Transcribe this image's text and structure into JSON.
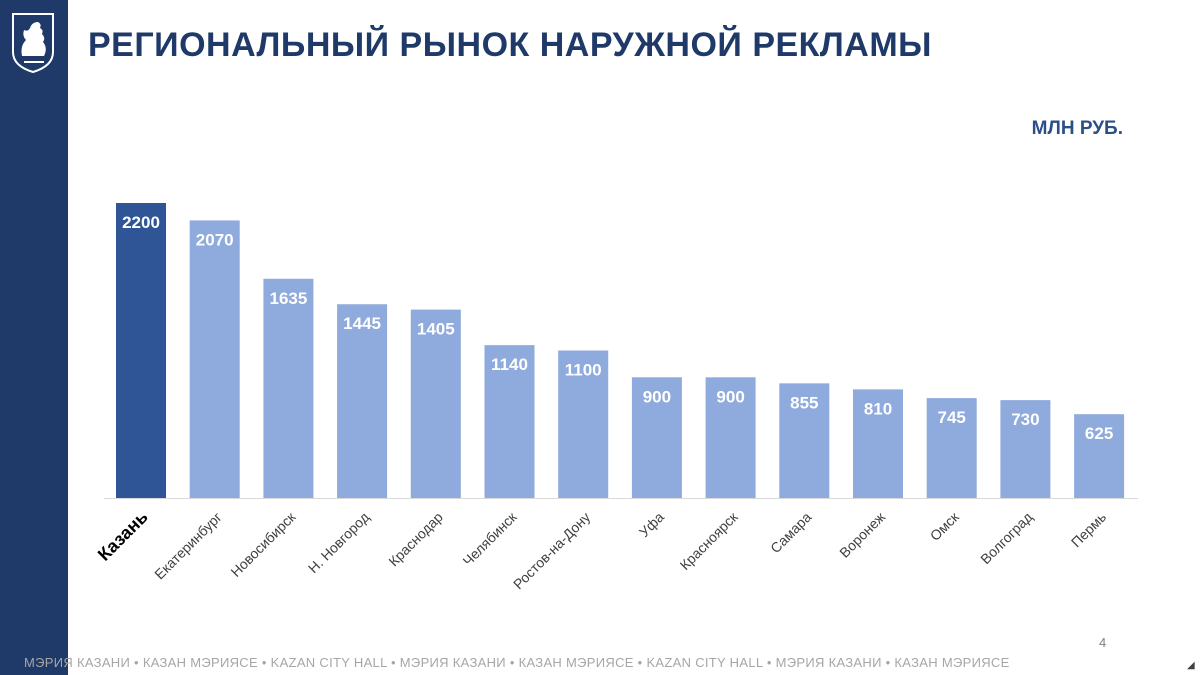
{
  "header": {
    "title": "РЕГИОНАЛЬНЫЙ РЫНОК НАРУЖНОЙ РЕКЛАМЫ",
    "unit_label": "МЛН РУБ."
  },
  "branding": {
    "logo_icon": "kazan-coat-of-arms-icon",
    "sidebar_color": "#1f3a68"
  },
  "footer": {
    "text": "МЭРИЯ КАЗАНИ  •  КАЗАН МЭРИЯСЕ  •  KAZAN CITY HALL  •  МЭРИЯ КАЗАНИ  •  КАЗАН МЭРИЯСЕ  •  KAZAN CITY HALL  •  МЭРИЯ КАЗАНИ  •  КАЗАН МЭРИЯСЕ",
    "page_number": "4"
  },
  "colors": {
    "highlight_bar": "#2f5597",
    "bar": "#8faadc",
    "title": "#1f3a68"
  },
  "chart_data": {
    "type": "bar",
    "title": "РЕГИОНАЛЬНЫЙ РЫНОК НАРУЖНОЙ РЕКЛАМЫ",
    "unit": "МЛН РУБ.",
    "categories": [
      "Казань",
      "Екатеринбург",
      "Новосибирск",
      "Н. Новгород",
      "Краснодар",
      "Челябинск",
      "Ростов-на-Дону",
      "Уфа",
      "Красноярск",
      "Самара",
      "Воронеж",
      "Омск",
      "Волгоград",
      "Пермь"
    ],
    "values": [
      2200,
      2070,
      1635,
      1445,
      1405,
      1140,
      1100,
      900,
      900,
      855,
      810,
      745,
      730,
      625
    ],
    "highlight": "Казань",
    "ylim": [
      0,
      2200
    ],
    "grid": false,
    "legend": "none"
  }
}
